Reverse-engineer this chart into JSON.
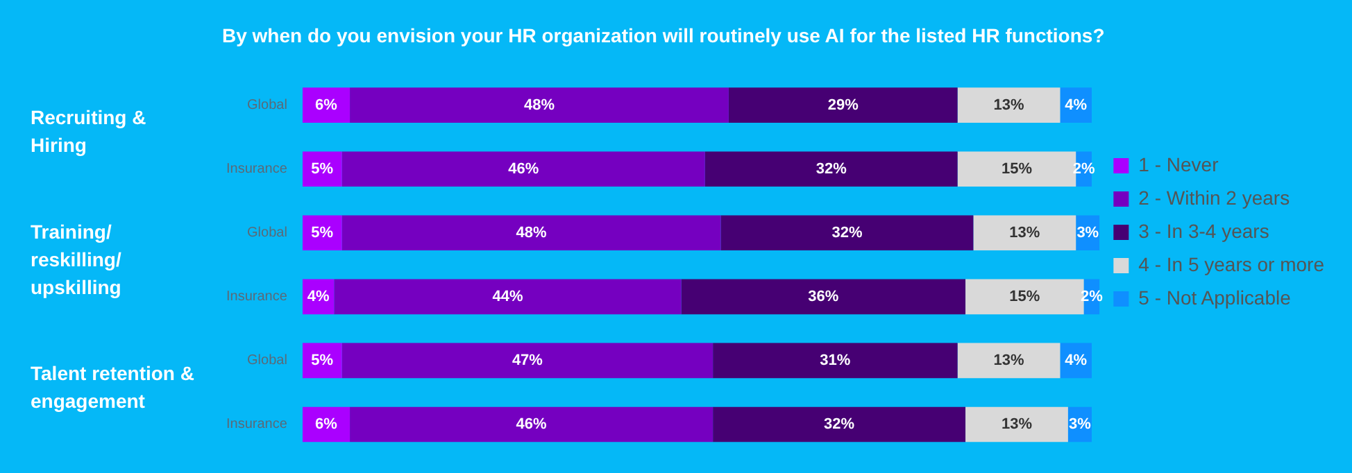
{
  "chart_data": {
    "type": "bar",
    "orientation": "horizontal",
    "stacked": true,
    "legend": "right",
    "title": "By when do you envision your HR organization will routinely use AI for the listed HR functions?",
    "categories": [
      "Global",
      "Insurance",
      "Global",
      "Insurance",
      "Global",
      "Insurance"
    ],
    "annotations": [
      "Recruiting & Hiring",
      "Training/ reskilling/ upskilling",
      "Talent retention & engagement"
    ],
    "series": [
      {
        "name": "1 - Never",
        "color": "#aa00ff",
        "values": [
          6,
          5,
          5,
          4,
          5,
          6
        ],
        "value_labels": [
          "6%",
          "5%",
          "5%",
          "4%",
          "5%",
          "6%"
        ]
      },
      {
        "name": "2 - Within 2 years",
        "color": "#7500c0",
        "values": [
          48,
          46,
          48,
          44,
          47,
          46
        ],
        "value_labels": [
          "48%",
          "46%",
          "48%",
          "44%",
          "47%",
          "46%"
        ]
      },
      {
        "name": "3 - In 3-4 years",
        "color": "#460073",
        "values": [
          29,
          32,
          32,
          36,
          31,
          32
        ],
        "value_labels": [
          "29%",
          "32%",
          "32%",
          "36%",
          "31%",
          "32%"
        ]
      },
      {
        "name": "4 - In 5 years or more",
        "color": "#d9d9d9",
        "values": [
          13,
          15,
          13,
          15,
          13,
          13
        ],
        "value_labels": [
          "13%",
          "15%",
          "13%",
          "15%",
          "13%",
          "13%"
        ]
      },
      {
        "name": "5 - Not Applicable",
        "color": "#0f8fff",
        "values": [
          4,
          2,
          3,
          2,
          4,
          3
        ],
        "value_labels": [
          "4%",
          "2%",
          "3%",
          "2%",
          "4%",
          "3%"
        ]
      }
    ]
  }
}
